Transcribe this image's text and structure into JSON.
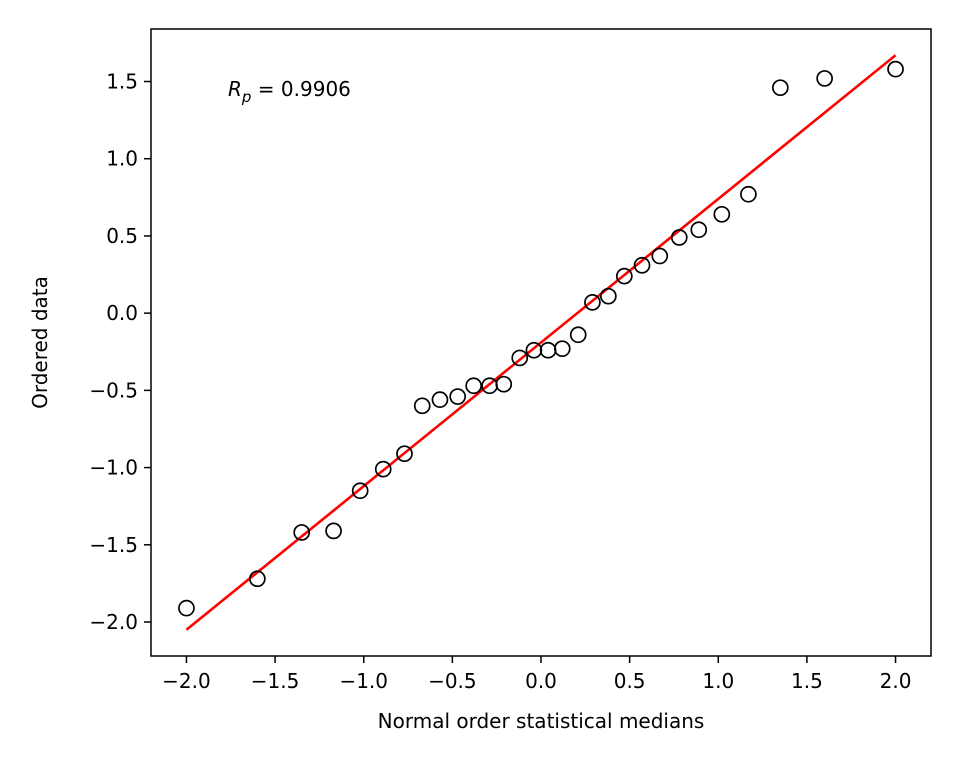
{
  "chart_data": {
    "type": "scatter",
    "title": "",
    "xlabel": "Normal order statistical medians",
    "ylabel": "Ordered data",
    "xlim": [
      -2.2,
      2.2
    ],
    "ylim": [
      -2.22,
      1.84
    ],
    "xticks": [
      -2.0,
      -1.5,
      -1.0,
      -0.5,
      0.0,
      0.5,
      1.0,
      1.5,
      2.0
    ],
    "xtick_labels": [
      "−2.0",
      "−1.5",
      "−1.0",
      "−0.5",
      "0.0",
      "0.5",
      "1.0",
      "1.5",
      "2.0"
    ],
    "yticks": [
      -2.0,
      -1.5,
      -1.0,
      -0.5,
      0.0,
      0.5,
      1.0,
      1.5
    ],
    "ytick_labels": [
      "−2.0",
      "−1.5",
      "−1.0",
      "−0.5",
      "0.0",
      "0.5",
      "1.0",
      "1.5"
    ],
    "grid": false,
    "annotation": {
      "symbol": "R",
      "subscript": "p",
      "equals": " = ",
      "value": "0.9906"
    },
    "series": [
      {
        "kind": "points",
        "marker": "open-circle",
        "color": "#000000",
        "x": [
          -2.0,
          -1.6,
          -1.35,
          -1.17,
          -1.02,
          -0.89,
          -0.77,
          -0.67,
          -0.57,
          -0.47,
          -0.38,
          -0.29,
          -0.21,
          -0.12,
          -0.04,
          0.04,
          0.12,
          0.21,
          0.29,
          0.38,
          0.47,
          0.57,
          0.67,
          0.78,
          0.89,
          1.02,
          1.17,
          1.35,
          1.6,
          2.0
        ],
        "y": [
          -1.91,
          -1.72,
          -1.42,
          -1.41,
          -1.15,
          -1.01,
          -0.91,
          -0.6,
          -0.56,
          -0.54,
          -0.47,
          -0.47,
          -0.46,
          -0.29,
          -0.24,
          -0.24,
          -0.23,
          -0.14,
          0.07,
          0.11,
          0.24,
          0.31,
          0.37,
          0.49,
          0.54,
          0.64,
          0.77,
          1.46,
          1.52,
          1.58
        ]
      },
      {
        "kind": "fit-line",
        "color": "#ff0000",
        "x": [
          -2.0,
          2.0
        ],
        "y": [
          -2.05,
          1.67
        ]
      }
    ]
  }
}
